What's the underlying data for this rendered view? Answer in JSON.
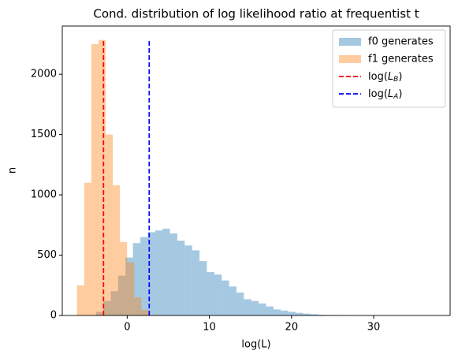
{
  "chart_data": {
    "type": "histogram",
    "title": "Cond. distribution of log likelihood ratio at frequentist  t",
    "xlabel": "log(L)",
    "ylabel": "n",
    "xlim": [
      -7.9,
      39.3
    ],
    "ylim": [
      0,
      2400
    ],
    "xticks": [
      0,
      10,
      20,
      30
    ],
    "yticks": [
      0,
      500,
      1000,
      1500,
      2000
    ],
    "legend": "upper right",
    "series": [
      {
        "name": "f0 generates",
        "color": "#1f77b4",
        "opacity": 0.4,
        "bins": [
          -3.8,
          -2.9,
          -2.0,
          -1.1,
          -0.2,
          0.7,
          1.6,
          2.5,
          3.4,
          4.3,
          5.2,
          6.1,
          7.0,
          7.9,
          8.8,
          9.7,
          10.6,
          11.5,
          12.4,
          13.3,
          14.2,
          15.1,
          16.0,
          16.9,
          17.8,
          18.7,
          19.6,
          20.5,
          21.4,
          22.3,
          23.2,
          24.1,
          25.0,
          25.9,
          26.8,
          27.7,
          28.6,
          29.5,
          30.4,
          31.3,
          32.2,
          33.1,
          34.0,
          34.9,
          35.8,
          36.7,
          37.6
        ],
        "values": [
          30,
          120,
          200,
          330,
          480,
          600,
          650,
          690,
          705,
          720,
          680,
          620,
          580,
          540,
          450,
          360,
          340,
          290,
          240,
          190,
          135,
          120,
          100,
          75,
          50,
          40,
          30,
          22,
          15,
          10,
          6,
          4,
          3,
          2,
          1,
          1,
          1,
          0,
          0,
          1,
          0,
          0,
          0,
          0,
          0,
          1
        ]
      },
      {
        "name": "f1 generates",
        "color": "#ff7f0e",
        "opacity": 0.4,
        "bins": [
          -6.1,
          -5.23,
          -4.36,
          -3.49,
          -2.62,
          -1.75,
          -0.88,
          -0.01,
          0.86,
          1.73,
          2.6
        ],
        "values": [
          250,
          1100,
          2250,
          2285,
          1500,
          1080,
          610,
          440,
          150,
          45
        ]
      }
    ],
    "vlines": [
      {
        "label": "log(L_B)",
        "x": -2.88,
        "ymin": 0,
        "ymax": 2285,
        "color": "#ff0000"
      },
      {
        "label": "log(L_A)",
        "x": 2.68,
        "ymin": 0,
        "ymax": 2285,
        "color": "#0000ff"
      }
    ]
  }
}
